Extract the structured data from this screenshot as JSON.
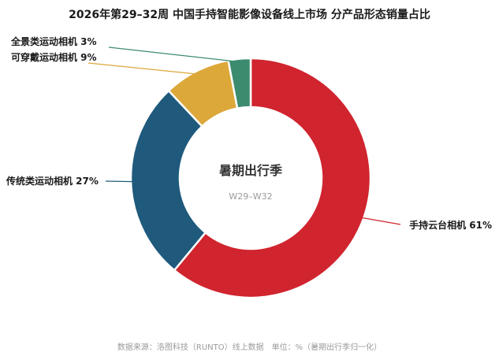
{
  "chart_data": {
    "type": "pie",
    "donut": true,
    "title": "2026年第29–32周 中国手持智能影像设备线上市场 分产品形态销量占比",
    "center_title": "暑期出行季",
    "center_subtitle": "W29–W32",
    "unit": "%",
    "slices": [
      {
        "name": "手持云台相机",
        "value": 61,
        "label": "手持云台相机 61%",
        "color": "#d0242e"
      },
      {
        "name": "传统类运动相机",
        "value": 27,
        "label": "传统类运动相机 27%",
        "color": "#1f5a7c"
      },
      {
        "name": "可穿戴运动相机",
        "value": 9,
        "label": "可穿戴运动相机 9%",
        "color": "#dca83a"
      },
      {
        "name": "全景类运动相机",
        "value": 3,
        "label": "全景类运动相机 3%",
        "color": "#3d8b6f"
      }
    ]
  },
  "footer": {
    "source": "数据来源：洛图科技（RUNTO）线上数据　单位：%（暑期出行季归一化）"
  }
}
